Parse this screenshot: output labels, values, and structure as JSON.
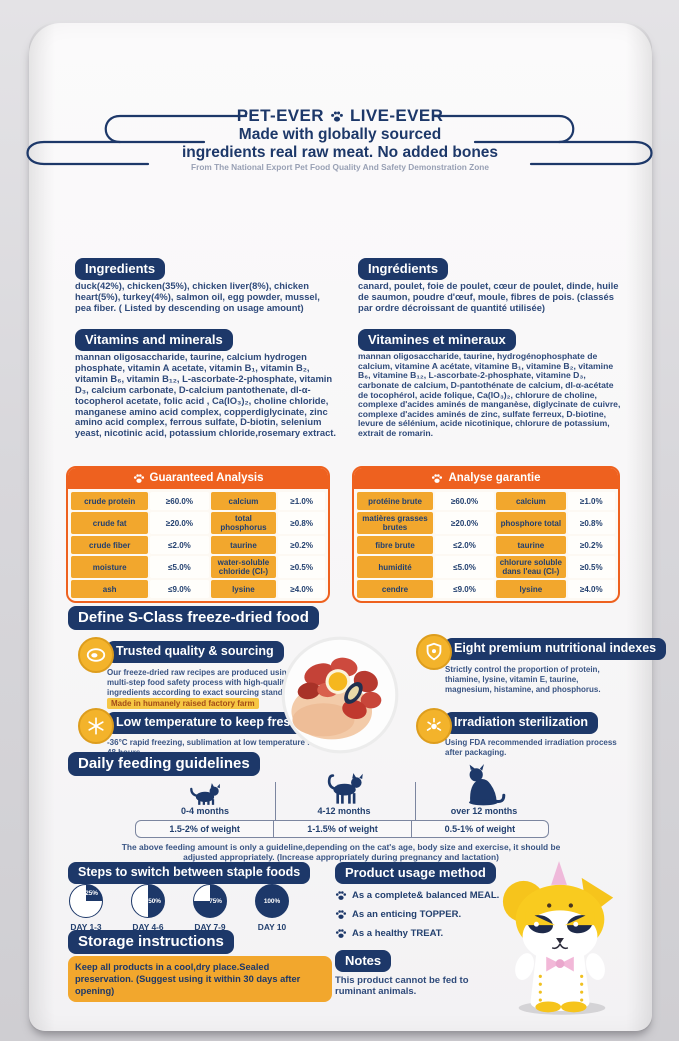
{
  "header": {
    "brand_left": "PET-EVER",
    "brand_right": "LIVE-EVER",
    "brand_icon": "paw-icon",
    "tagline_line1": "Made with globally sourced",
    "tagline_line2": "ingredients real raw meat. No added bones",
    "subtitle": "From The National Export Pet Food Quality And Safety Demonstration Zone"
  },
  "ingredients_en": {
    "title": "Ingredients",
    "body": "duck(42%), chicken(35%), chicken liver(8%), chicken heart(5%), turkey(4%), salmon oil, egg powder, mussel, pea fiber. ( Listed by descending on usage amount)"
  },
  "ingredients_fr": {
    "title": "Ingrédients",
    "body": "canard, poulet, foie de poulet, cœur de poulet, dinde, huile de saumon, poudre d'œuf, moule, fibres de pois. (classés par ordre décroissant de quantité utilisée)"
  },
  "vitamins_en": {
    "title": "Vitamins and minerals",
    "body": "mannan oligosaccharide, taurine, calcium hydrogen phosphate, vitamin A acetate, vitamin B₁, vitamin B₂, vitamin B₆, vitamin B₁₂, L-ascorbate-2-phosphate, vitamin D₃, calcium carbonate, D-calcium pantothenate, dl-α-tocopherol acetate, folic acid , Ca(IO₃)₂, choline chloride, manganese amino acid complex, copperdiglycinate, zinc amino acid complex, ferrous sulfate, D-biotin, selenium yeast, nicotinic acid, potassium chloride,rosemary extract."
  },
  "vitamins_fr": {
    "title": "Vitamines et mineraux",
    "body": "mannan oligosaccharide, taurine, hydrogénophosphate de calcium, vitamine A acétate, vitamine B₁, vitamine B₂, vitamine B₆, vitamine B₁₂, L-ascorbate-2-phosphate, vitamine D₃, carbonate de calcium, D-pantothénate de calcium, dl-α-acétate de tocophérol, acide folique, Ca(IO₃)₂, chlorure de choline, complexe d'acides aminés de manganèse, diglycinate de cuivre, complexe d'acides aminés de zinc, sulfate ferreux, D-biotine, levure de sélénium, acide nicotinique, chlorure de potassium, extrait de romarin."
  },
  "analysis_en": {
    "title": "Guaranteed Analysis",
    "rows": [
      [
        "crude protein",
        "≥60.0%",
        "calcium",
        "≥1.0%"
      ],
      [
        "crude fat",
        "≥20.0%",
        "total phosphorus",
        "≥0.8%"
      ],
      [
        "crude fiber",
        "≤2.0%",
        "taurine",
        "≥0.2%"
      ],
      [
        "moisture",
        "≤5.0%",
        "water-soluble chloride (Cl-)",
        "≥0.5%"
      ],
      [
        "ash",
        "≤9.0%",
        "lysine",
        "≥4.0%"
      ]
    ]
  },
  "analysis_fr": {
    "title": "Analyse garantie",
    "rows": [
      [
        "protéine brute",
        "≥60.0%",
        "calcium",
        "≥1.0%"
      ],
      [
        "matières grasses brutes",
        "≥20.0%",
        "phosphore total",
        "≥0.8%"
      ],
      [
        "fibre brute",
        "≤2.0%",
        "taurine",
        "≥0.2%"
      ],
      [
        "humidité",
        "≤5.0%",
        "chlorure soluble dans l'eau (Cl-)",
        "≥0.5%"
      ],
      [
        "cendre",
        "≤9.0%",
        "lysine",
        "≥4.0%"
      ]
    ]
  },
  "sclass": {
    "title": "Define S-Class freeze-dried food",
    "features": [
      {
        "icon": "steak-icon",
        "title": "Trusted quality & sourcing",
        "body": "Our freeze-dried raw recipes are produced using a multi-step food safety process with high-quality ingredients according to exact sourcing standards.",
        "note": "Made in humanely raised factory farm"
      },
      {
        "icon": "shield-icon",
        "title": "Eight premium nutritional indexes",
        "body": "Strictly control the proportion of protein, thiamine, lysine, vitamin E, taurine, magnesium, histamine, and phosphorus."
      },
      {
        "icon": "snowflake-icon",
        "title": "Low temperature to keep fresh",
        "body": "-36°C rapid freezing, sublimation at low temperature for 48 hours."
      },
      {
        "icon": "radiation-icon",
        "title": "Irradiation sterilization",
        "body": "Using FDA recommended irradiation process after packaging."
      }
    ]
  },
  "feeding": {
    "title": "Daily feeding guidelines",
    "columns": [
      {
        "age": "0-4 months",
        "amount": "1.5-2% of weight"
      },
      {
        "age": "4-12 months",
        "amount": "1-1.5% of weight"
      },
      {
        "age": "over 12 months",
        "amount": "0.5-1% of weight"
      }
    ],
    "note": "The above feeding amount is only a guideline,depending on the cat's age, body size and exercise, it should be adjusted appropriately. (Increase appropriately during pregnancy and lactation)"
  },
  "switch": {
    "title": "Steps to switch between staple foods",
    "steps": [
      {
        "day": "DAY 1-3",
        "label": "25%",
        "value": 25
      },
      {
        "day": "DAY 4-6",
        "label": "50%",
        "value": 50
      },
      {
        "day": "DAY 7-9",
        "label": "75%",
        "value": 75
      },
      {
        "day": "DAY 10",
        "label": "100%",
        "value": 100
      }
    ]
  },
  "storage": {
    "title": "Storage instructions",
    "body": "Keep all products in a cool,dry place.Sealed preservation. (Suggest using it within 30 days after opening)"
  },
  "usage": {
    "title": "Product usage method",
    "items": [
      "As a complete& balanced MEAL.",
      "As an enticing TOPPER.",
      "As a healthy TREAT."
    ]
  },
  "notes": {
    "title": "Notes",
    "body": "This product cannot be fed to ruminant animals."
  },
  "colors": {
    "navy": "#1d3869",
    "orange": "#ee611f",
    "amber": "#f2a72d",
    "gold": "#f3b32b",
    "highlight": "#f6c644",
    "bag": "#f8f7f8"
  }
}
